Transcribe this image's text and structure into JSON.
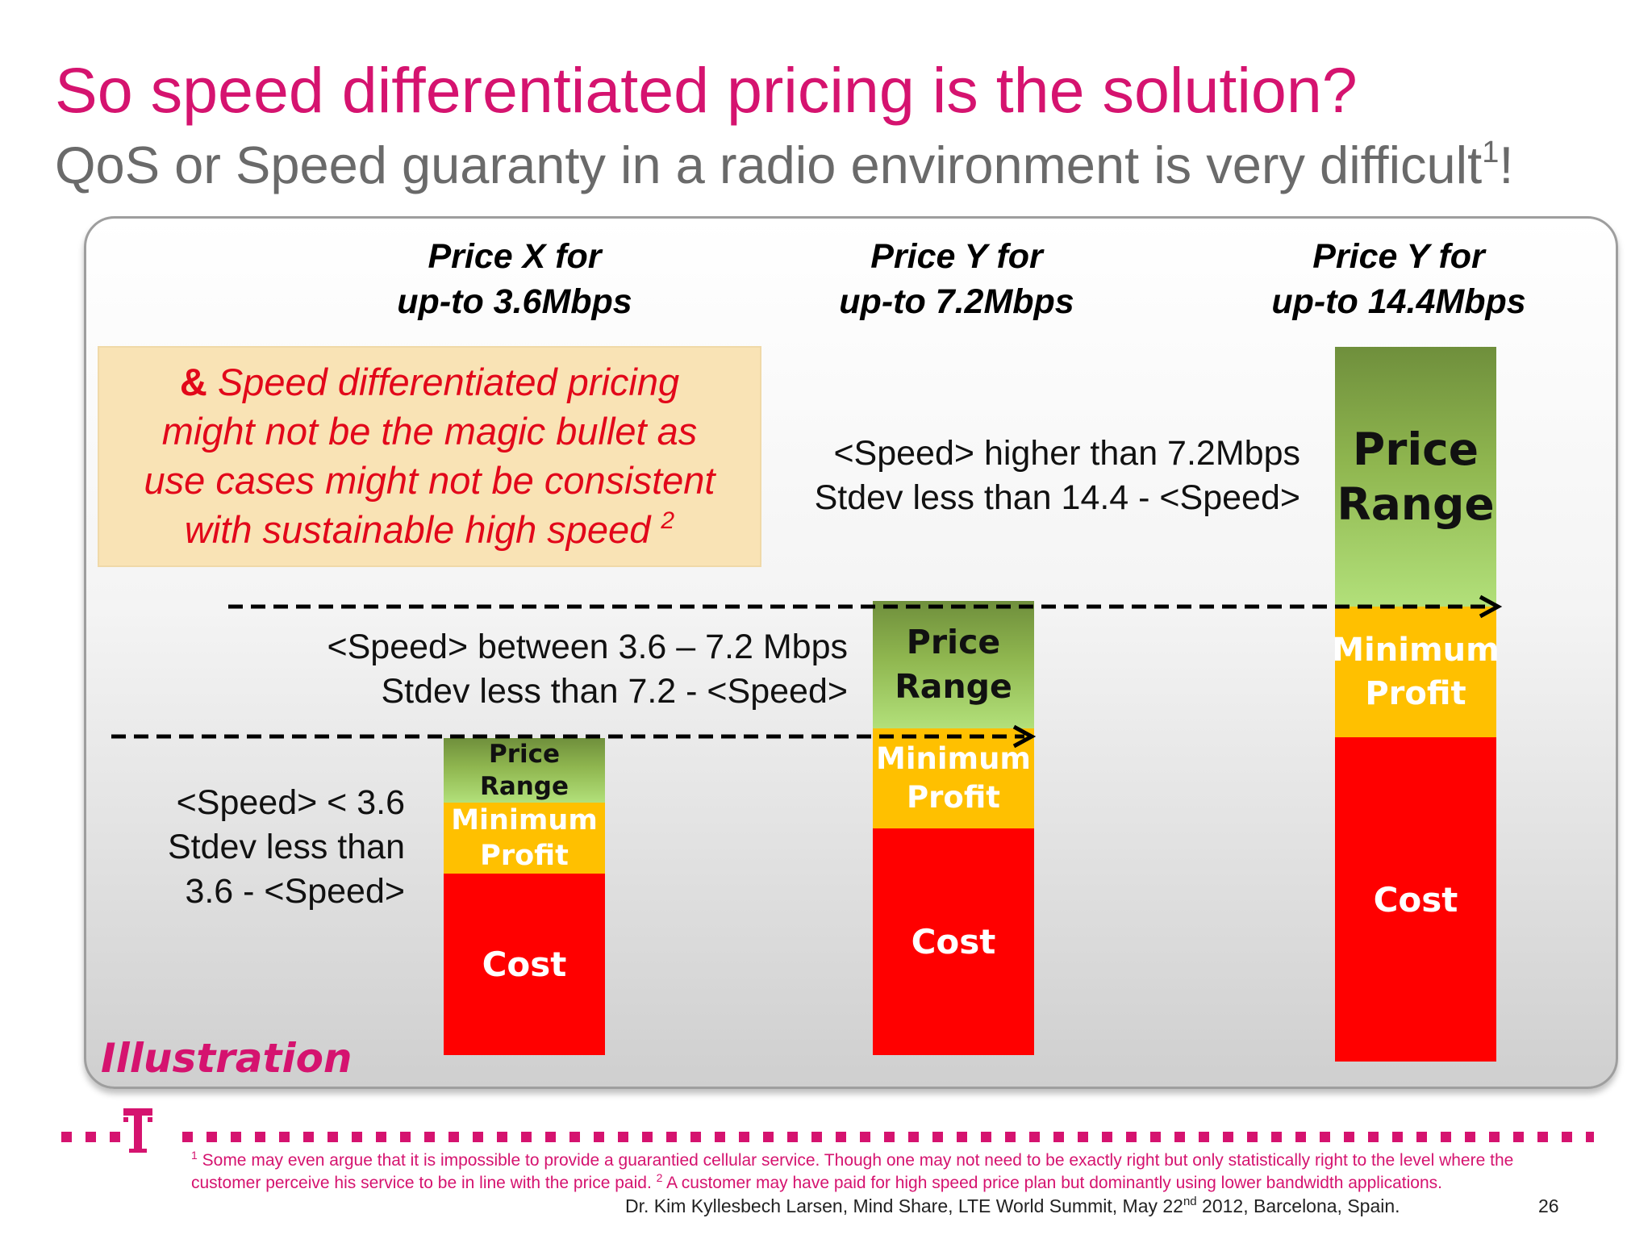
{
  "slide": {
    "title": "So speed differentiated pricing is the solution?",
    "subtitle": "QoS or Speed guaranty in a radio environment is very difficult",
    "subtitle_sup": "1",
    "subtitle_end": "!"
  },
  "columns": [
    {
      "header_line1": "Price X for",
      "header_line2": "up-to 3.6Mbps",
      "segments": {
        "price_range": "Price Range",
        "minimum_profit": "Minimum Profit",
        "cost": "Cost"
      }
    },
    {
      "header_line1": "Price Y for",
      "header_line2": "up-to 7.2Mbps",
      "segments": {
        "price_range": "Price Range",
        "minimum_profit": "Minimum Profit",
        "cost": "Cost"
      }
    },
    {
      "header_line1": "Price Y for",
      "header_line2": "up-to 14.4Mbps",
      "segments": {
        "price_range": "Price Range",
        "minimum_profit": "Minimum Profit",
        "cost": "Cost"
      }
    }
  ],
  "callout": {
    "amp": "&",
    "line1": " Speed differentiated pricing",
    "line2": "might not be the magic bullet as",
    "line3": "use cases might not be consistent",
    "line4": "with sustainable high speed ",
    "sup": "2"
  },
  "notes": {
    "high": {
      "line1": "<Speed> higher than  7.2Mbps",
      "line2": "Stdev less than 14.4 - <Speed>"
    },
    "mid": {
      "line1": "<Speed> between 3.6 – 7.2 Mbps",
      "line2": "Stdev less than 7.2 - <Speed>"
    },
    "low": {
      "line1": "<Speed> < 3.6",
      "line2": "Stdev less than",
      "line3": " 3.6 - <Speed>"
    }
  },
  "illustration_label": "Illustration",
  "logo": "T",
  "footnote": {
    "sup1": "1",
    "text1": " Some may even argue that it is impossible to provide a guarantied cellular service. Though one may not need to be exactly right but only statistically right to the level where the customer perceive his service to be in line with the price paid. ",
    "sup2": "2",
    "text2": " A customer may have paid for high speed price plan but dominantly using lower bandwidth applications."
  },
  "credit": {
    "before": "Dr. Kim Kyllesbech Larsen, Mind Share, LTE World Summit, May 22",
    "sup": "nd",
    "after": " 2012, Barcelona, Spain."
  },
  "page_number": "26",
  "colors": {
    "magenta": "#d5136f",
    "grey_text": "#6a6a6a",
    "callout_bg": "#f9e3b5",
    "callout_text": "#e2081a",
    "cost_red": "#ff0000",
    "profit_amber": "#ffc000",
    "range_green": "#8fb64f"
  }
}
